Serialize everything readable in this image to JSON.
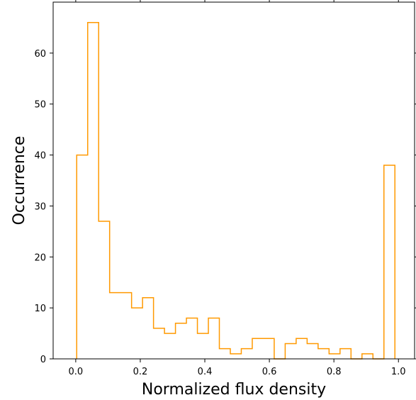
{
  "chart_data": {
    "type": "histogram",
    "title": "",
    "xlabel": "Normalized flux density",
    "ylabel": "Occurrence",
    "xlim": [
      -0.07,
      1.05
    ],
    "ylim": [
      0,
      70
    ],
    "xticks": [
      0.0,
      0.2,
      0.4,
      0.6,
      0.8,
      1.0
    ],
    "xtick_labels": [
      "0.0",
      "0.2",
      "0.4",
      "0.6",
      "0.8",
      "1.0"
    ],
    "yticks": [
      0,
      10,
      20,
      30,
      40,
      50,
      60
    ],
    "ytick_labels": [
      "0",
      "10",
      "20",
      "30",
      "40",
      "50",
      "60"
    ],
    "grid": false,
    "ticks_on_all_sides": true,
    "histtype": "step",
    "color": "#ff9900",
    "bin_edges": [
      0.003,
      0.037,
      0.071,
      0.105,
      0.139,
      0.173,
      0.207,
      0.241,
      0.275,
      0.309,
      0.343,
      0.377,
      0.411,
      0.445,
      0.479,
      0.513,
      0.547,
      0.581,
      0.615,
      0.649,
      0.683,
      0.717,
      0.751,
      0.785,
      0.819,
      0.853,
      0.887,
      0.921,
      0.955,
      0.989
    ],
    "counts": [
      40,
      66,
      27,
      13,
      13,
      10,
      12,
      6,
      5,
      7,
      8,
      5,
      8,
      2,
      1,
      2,
      4,
      4,
      0,
      3,
      4,
      3,
      2,
      1,
      2,
      0,
      1,
      0,
      38
    ]
  }
}
